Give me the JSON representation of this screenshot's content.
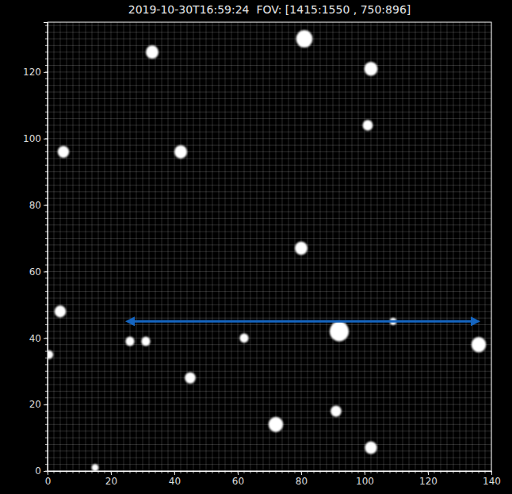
{
  "chart_data": {
    "type": "scatter",
    "title": "2019-10-30T16:59:24  FOV: [1415:1550 , 750:896]",
    "x": [
      81,
      33,
      102,
      101,
      5,
      42,
      80,
      4,
      92,
      136,
      26,
      31,
      62,
      45,
      72,
      91,
      102,
      109,
      0.5,
      15
    ],
    "y": [
      130,
      126,
      121,
      104,
      96,
      96,
      67,
      48,
      42,
      38,
      39,
      39,
      40,
      28,
      14,
      18,
      7,
      45,
      35,
      1
    ],
    "sizes": [
      2.6,
      2.0,
      2.1,
      1.6,
      1.8,
      2.0,
      2.0,
      1.8,
      3.0,
      2.3,
      1.4,
      1.4,
      1.4,
      1.7,
      2.3,
      1.7,
      1.9,
      1.1,
      1.3,
      1.1
    ],
    "color": "#ffffff",
    "marker": "circle",
    "xlim": [
      0,
      140
    ],
    "ylim": [
      0,
      135
    ],
    "xticks": [
      0,
      20,
      40,
      60,
      80,
      100,
      120,
      140
    ],
    "yticks": [
      0,
      20,
      40,
      60,
      80,
      100,
      120
    ],
    "xminorticks": [
      0,
      2,
      4,
      6,
      8,
      10,
      12,
      14,
      16,
      18,
      20,
      22,
      24,
      26,
      28,
      30,
      32,
      34,
      36,
      38,
      40,
      42,
      44,
      46,
      48,
      50,
      52,
      54,
      56,
      58,
      60,
      62,
      64,
      66,
      68,
      70,
      72,
      74,
      76,
      78,
      80,
      82,
      84,
      86,
      88,
      90,
      92,
      94,
      96,
      98,
      100,
      102,
      104,
      106,
      108,
      110,
      112,
      114,
      116,
      118,
      120,
      122,
      124,
      126,
      128,
      130,
      132,
      134,
      136,
      138,
      140
    ],
    "yminorticks": [
      0,
      2,
      4,
      6,
      8,
      10,
      12,
      14,
      16,
      18,
      20,
      22,
      24,
      26,
      28,
      30,
      32,
      34,
      36,
      38,
      40,
      42,
      44,
      46,
      48,
      50,
      52,
      54,
      56,
      58,
      60,
      62,
      64,
      66,
      68,
      70,
      72,
      74,
      76,
      78,
      80,
      82,
      84,
      86,
      88,
      90,
      92,
      94,
      96,
      98,
      100,
      102,
      104,
      106,
      108,
      110,
      112,
      114,
      116,
      118,
      120,
      122,
      124,
      126,
      128,
      130,
      132,
      134
    ],
    "grid": true,
    "arrow": {
      "x": [
        26,
        135
      ],
      "y": 45,
      "color": "#1565c0"
    }
  }
}
